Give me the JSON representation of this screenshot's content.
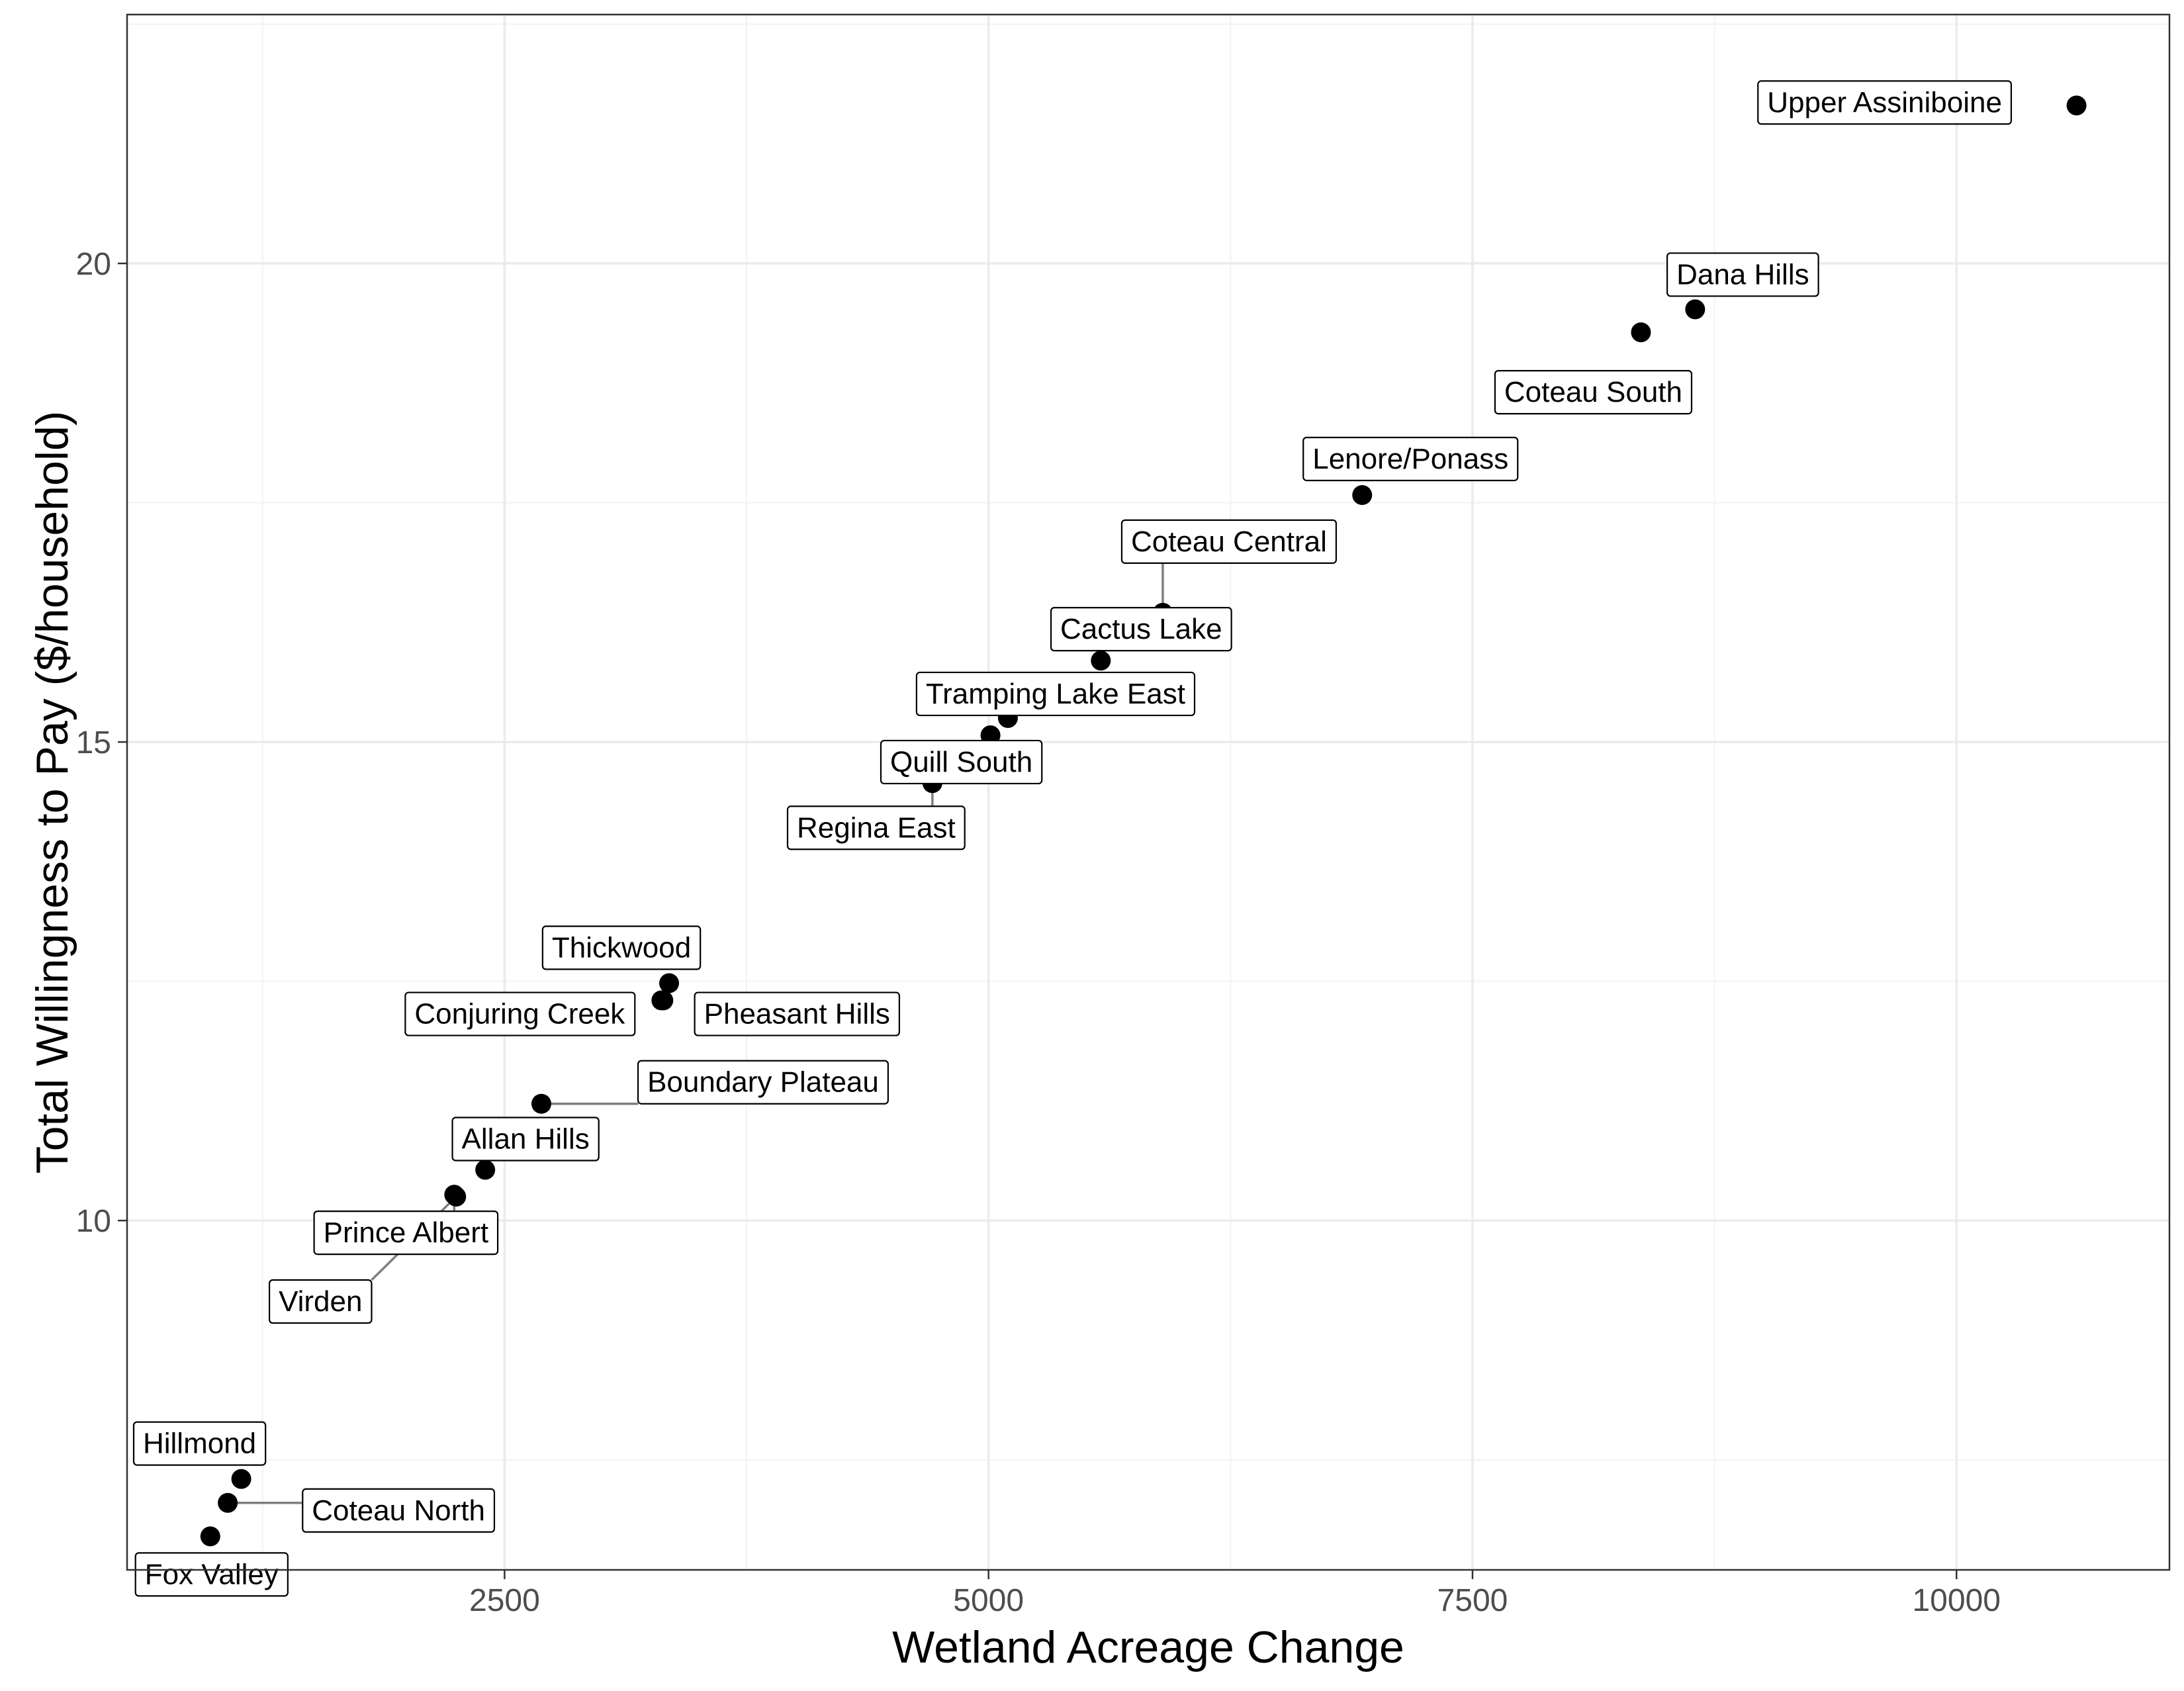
{
  "chart_data": {
    "type": "scatter",
    "title": "",
    "xlabel": "Wetland Acreage Change",
    "ylabel": "Total Willingness to Pay ($/household)",
    "xlim": [
      550,
      11100
    ],
    "ylim": [
      6.35,
      22.6
    ],
    "x_ticks": [
      2500,
      5000,
      7500,
      10000
    ],
    "x_tick_labels": [
      "2500",
      "5000",
      "7500",
      "10000"
    ],
    "y_ticks": [
      10,
      15,
      20
    ],
    "y_tick_labels": [
      "10",
      "15",
      "20"
    ],
    "grid": true,
    "legend": "none",
    "point_color": "#000000",
    "points": [
      {
        "name": "Upper Assiniboine",
        "x": 10620,
        "y": 21.65
      },
      {
        "name": "Dana Hills",
        "x": 8650,
        "y": 19.52
      },
      {
        "name": "Coteau South",
        "x": 8370,
        "y": 19.28
      },
      {
        "name": "Lenore/Ponass",
        "x": 6930,
        "y": 17.58
      },
      {
        "name": "Coteau Central",
        "x": 5900,
        "y": 16.35
      },
      {
        "name": "Cactus Lake",
        "x": 5580,
        "y": 15.85
      },
      {
        "name": "Tramping Lake East",
        "x": 5100,
        "y": 15.25
      },
      {
        "name": "Quill South",
        "x": 5010,
        "y": 15.07
      },
      {
        "name": "Regina East",
        "x": 4710,
        "y": 14.57
      },
      {
        "name": "Thickwood",
        "x": 3350,
        "y": 12.48
      },
      {
        "name": "Conjuring Creek",
        "x": 3310,
        "y": 12.3
      },
      {
        "name": "Pheasant Hills",
        "x": 3320,
        "y": 12.3
      },
      {
        "name": "Boundary Plateau",
        "x": 2690,
        "y": 11.22
      },
      {
        "name": "Allan Hills",
        "x": 2400,
        "y": 10.53
      },
      {
        "name": "Prince Albert",
        "x": 2240,
        "y": 10.27
      },
      {
        "name": "Virden",
        "x": 2250,
        "y": 10.25
      },
      {
        "name": "Hillmond",
        "x": 1140,
        "y": 7.3
      },
      {
        "name": "Coteau North",
        "x": 1070,
        "y": 7.05
      },
      {
        "name": "Fox Valley",
        "x": 980,
        "y": 6.7
      }
    ]
  }
}
